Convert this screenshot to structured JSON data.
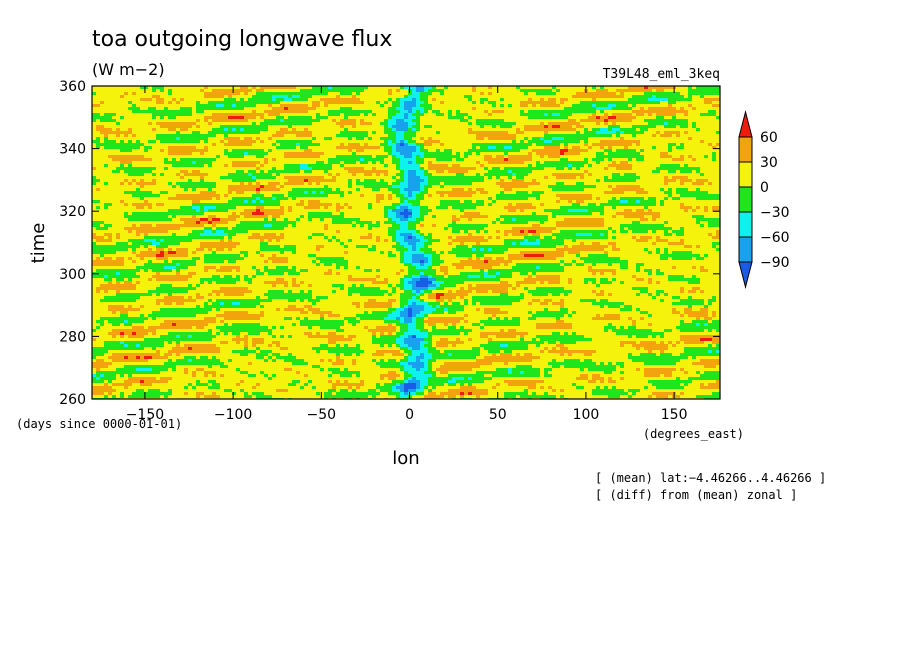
{
  "chart_data": {
    "type": "heatmap",
    "title": "toa outgoing longwave flux",
    "units": "(W m−2)",
    "run_name": "T39L48_eml_3keq",
    "xlabel": "lon",
    "ylabel": "time",
    "x_units": "(degrees_east)",
    "y_units": "(days since 0000-01-01)",
    "xlim": [
      -180,
      176
    ],
    "ylim": [
      260,
      360
    ],
    "x_ticks": [
      -150,
      -100,
      -50,
      0,
      50,
      100,
      150
    ],
    "y_ticks": [
      260,
      280,
      300,
      320,
      340,
      360
    ],
    "notes": [
      "[ (mean) lat:−4.46266..4.46266 ]",
      "[ (diff) from (mean) zonal ]"
    ],
    "colorbar": {
      "levels": [
        60,
        30,
        0,
        -30,
        -60,
        -90
      ],
      "level_labels": [
        "60",
        "30",
        "0",
        "−30",
        "−60",
        "−90"
      ],
      "colors": [
        "#ee1c0c",
        "#f3a30d",
        "#f5f20c",
        "#1ee51c",
        "#0ef2ee",
        "#18a2ee",
        "#1a5ce8"
      ]
    },
    "pattern": {
      "background_level": "0..30 (yellow)",
      "features": [
        "eastward-propagating diagonal bands of -30..-60 (green/cyan)",
        "quasi-stationary strongly negative strip near lon 0 reaching -90..-60 (blue)",
        "scattered 30..60 patches (orange)"
      ]
    }
  }
}
